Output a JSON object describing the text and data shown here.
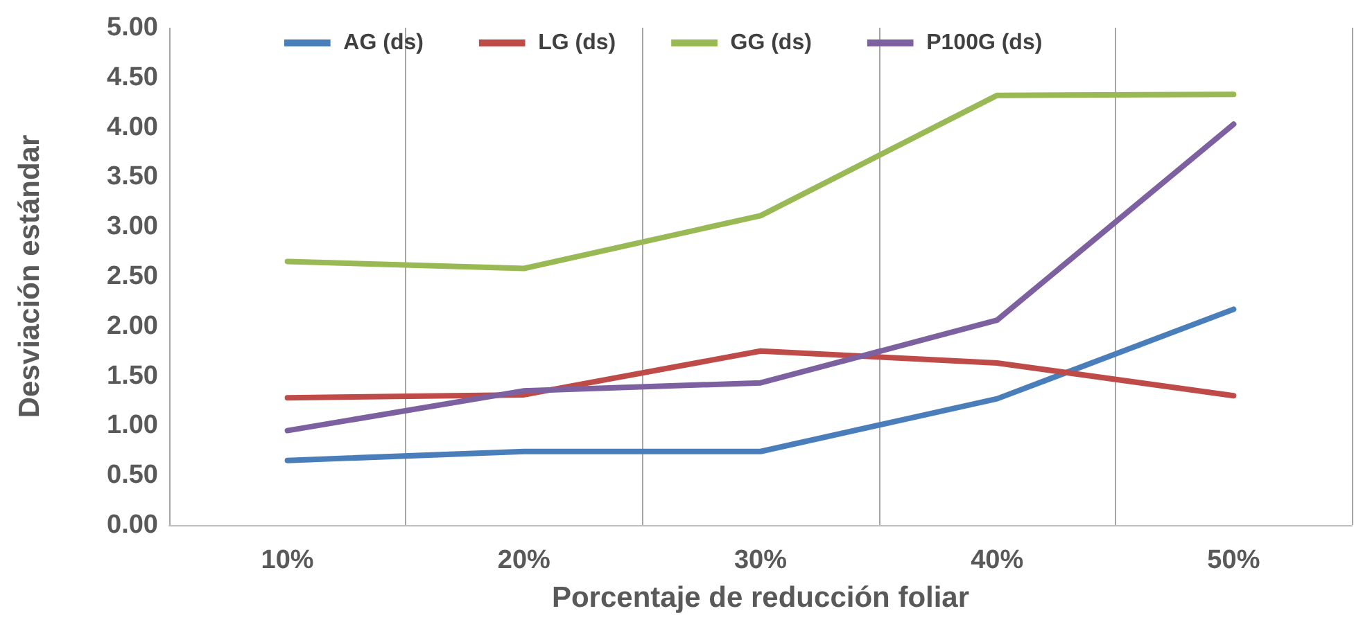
{
  "chart_data": {
    "type": "line",
    "xlabel": "Porcentaje de reducción foliar",
    "ylabel": "Desviación estándar",
    "categories": [
      "10%",
      "20%",
      "30%",
      "40%",
      "50%"
    ],
    "series": [
      {
        "name": "AG (ds)",
        "color": "#4a7ebb",
        "values": [
          0.65,
          0.74,
          0.74,
          1.27,
          2.17
        ]
      },
      {
        "name": "LG (ds)",
        "color": "#be4b48",
        "values": [
          1.28,
          1.31,
          1.75,
          1.63,
          1.3
        ]
      },
      {
        "name": "GG (ds)",
        "color": "#98b954",
        "values": [
          2.65,
          2.58,
          3.11,
          4.32,
          4.33
        ]
      },
      {
        "name": "P100G (ds)",
        "color": "#7d60a0",
        "values": [
          0.95,
          1.35,
          1.43,
          2.06,
          4.03
        ]
      }
    ],
    "ylim": [
      0,
      5
    ],
    "yticks": [
      {
        "value": 0,
        "label": "0.00"
      },
      {
        "value": 0.5,
        "label": "0.50"
      },
      {
        "value": 1,
        "label": "1.00"
      },
      {
        "value": 1.5,
        "label": "1.50"
      },
      {
        "value": 2,
        "label": "2.00"
      },
      {
        "value": 2.5,
        "label": "2.50"
      },
      {
        "value": 3,
        "label": "3.00"
      },
      {
        "value": 3.5,
        "label": "3.50"
      },
      {
        "value": 4,
        "label": "4.00"
      },
      {
        "value": 4.5,
        "label": "4.50"
      },
      {
        "value": 5,
        "label": "5.00"
      }
    ],
    "grid": "x",
    "legend": "top",
    "marker": "none",
    "line_style": "solid"
  }
}
